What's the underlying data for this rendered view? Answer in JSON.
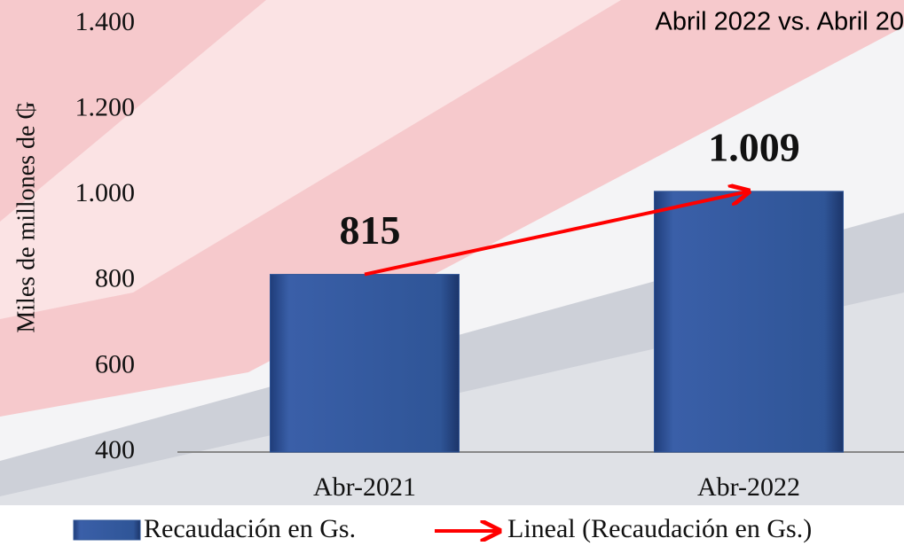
{
  "chart_data": {
    "type": "bar",
    "title": "Abril 2022 vs. Abril 20",
    "y_label": "Miles de millones de ₲",
    "categories": [
      "Abr-2021",
      "Abr-2022"
    ],
    "series": [
      {
        "name": "Recaudación en Gs.",
        "color": "#2f5597",
        "values": [
          815,
          1009
        ],
        "value_labels": [
          "815",
          "1.009"
        ]
      }
    ],
    "trendline": {
      "name": "Lineal (Recaudación en Gs.)",
      "color": "#ff0000"
    },
    "ylim": [
      400,
      1400
    ],
    "yticks": [
      {
        "value": 400,
        "label": "400"
      },
      {
        "value": 600,
        "label": "600"
      },
      {
        "value": 800,
        "label": "800"
      },
      {
        "value": 1000,
        "label": "1.000"
      },
      {
        "value": 1200,
        "label": "1.200"
      },
      {
        "value": 1400,
        "label": "1.400"
      }
    ],
    "grid": false
  }
}
